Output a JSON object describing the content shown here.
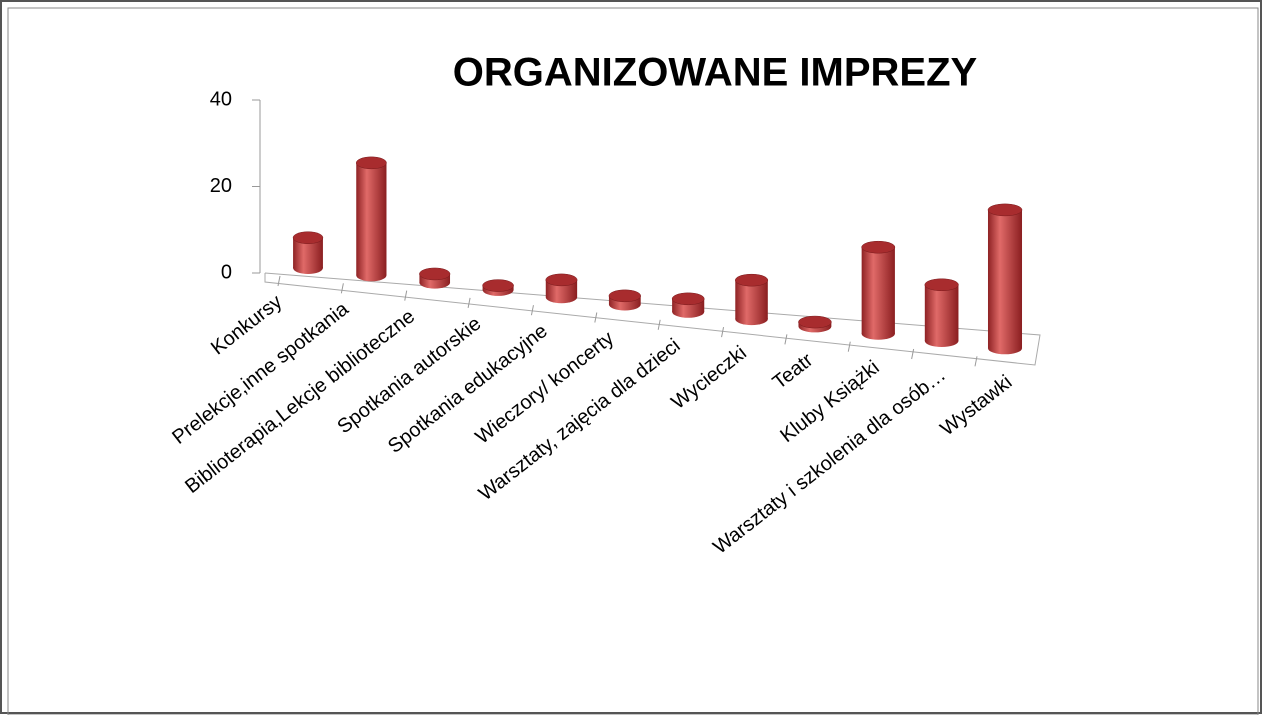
{
  "chart_data": {
    "type": "bar3d",
    "title": "ORGANIZOWANE IMPREZY",
    "categories": [
      "Konkursy",
      "Prelekcje,inne spotkania",
      "Biblioterapia,Lekcje biblioteczne",
      "Spotkania autorskie",
      "Spotkania edukacyjne",
      "Wieczory/ koncerty",
      "Warsztaty, zajęcia dla dzieci",
      "Wycieczki",
      "Teatr",
      "Kluby Książki",
      "Warsztaty i szkolenia dla osób…",
      "Wystawki"
    ],
    "values": [
      7,
      26,
      2,
      1,
      4,
      2,
      3,
      9,
      1,
      20,
      13,
      32
    ],
    "color": "#c0393b",
    "ylim": [
      0,
      40
    ],
    "yticks": [
      0,
      20,
      40
    ]
  }
}
